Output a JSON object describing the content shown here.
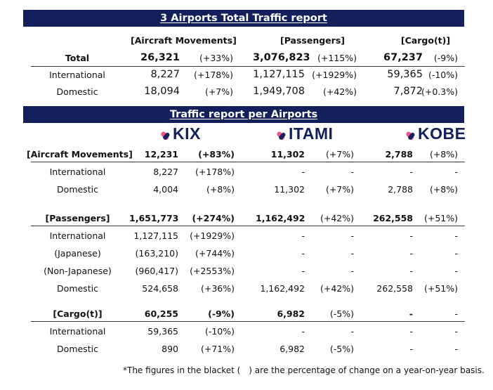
{
  "total_report": {
    "title": "3 Airports Total Traffic report",
    "col_headers": [
      "[Aircraft Movements]",
      "[Passengers]",
      "[Cargo(t)]"
    ],
    "rows": [
      {
        "label": "Total",
        "am": "26,321",
        "am_pct": "(+33%)",
        "pax": "3,076,823",
        "pax_pct": "(+115%)",
        "cargo": "67,237",
        "cargo_pct": "(-9%)"
      },
      {
        "label": "International",
        "am": "8,227",
        "am_pct": "(+178%)",
        "pax": "1,127,115",
        "pax_pct": "(+1929%)",
        "cargo": "59,365",
        "cargo_pct": "(-10%)"
      },
      {
        "label": "Domestic",
        "am": "18,094",
        "am_pct": "(+7%)",
        "pax": "1,949,708",
        "pax_pct": "(+42%)",
        "cargo": "7,872",
        "cargo_pct": "(+0.3%)"
      }
    ]
  },
  "per_airport": {
    "title": "Traffic report per Airports",
    "logos": {
      "kix": "KIX",
      "itami": "ITAMI",
      "kobe": "KOBE"
    },
    "logo_colors": [
      "#e8578f",
      "#14205c"
    ],
    "sections": [
      {
        "rows": [
          {
            "label": "[Aircraft Movements]",
            "kix": "12,231",
            "kix_pct": "(+83%)",
            "itami": "11,302",
            "itami_pct": "(+7%)",
            "kobe": "2,788",
            "kobe_pct": "(+8%)"
          },
          {
            "label": "International",
            "kix": "8,227",
            "kix_pct": "(+178%)",
            "itami": "-",
            "itami_pct": "-",
            "kobe": "-",
            "kobe_pct": "-"
          },
          {
            "label": "Domestic",
            "kix": "4,004",
            "kix_pct": "(+8%)",
            "itami": "11,302",
            "itami_pct": "(+7%)",
            "kobe": "2,788",
            "kobe_pct": "(+8%)"
          }
        ]
      },
      {
        "rows": [
          {
            "label": "[Passengers]",
            "kix": "1,651,773",
            "kix_pct": "(+274%)",
            "itami": "1,162,492",
            "itami_pct": "(+42%)",
            "kobe": "262,558",
            "kobe_pct": "(+51%)"
          },
          {
            "label": "International",
            "kix": "1,127,115",
            "kix_pct": "(+1929%)",
            "itami": "-",
            "itami_pct": "-",
            "kobe": "-",
            "kobe_pct": "-"
          },
          {
            "label": "(Japanese)",
            "kix": "(163,210)",
            "kix_pct": "(+744%)",
            "itami": "-",
            "itami_pct": "-",
            "kobe": "-",
            "kobe_pct": "-"
          },
          {
            "label": "(Non-Japanese)",
            "kix": "(960,417)",
            "kix_pct": "(+2553%)",
            "itami": "-",
            "itami_pct": "-",
            "kobe": "-",
            "kobe_pct": "-"
          },
          {
            "label": "Domestic",
            "kix": "524,658",
            "kix_pct": "(+36%)",
            "itami": "1,162,492",
            "itami_pct": "(+42%)",
            "kobe": "262,558",
            "kobe_pct": "(+51%)"
          }
        ]
      },
      {
        "rows": [
          {
            "label": "[Cargo(t)]",
            "kix": "60,255",
            "kix_pct": "(-9%)",
            "itami": "6,982",
            "itami_pct": "(-5%)",
            "kobe": "-",
            "kobe_pct": "-"
          },
          {
            "label": "International",
            "kix": "59,365",
            "kix_pct": "(-10%)",
            "itami": "-",
            "itami_pct": "-",
            "kobe": "-",
            "kobe_pct": "-"
          },
          {
            "label": "Domestic",
            "kix": "890",
            "kix_pct": "(+71%)",
            "itami": "6,982",
            "itami_pct": "(-5%)",
            "kobe": "-",
            "kobe_pct": "-"
          }
        ]
      }
    ]
  },
  "footnote": "*The figures in the blacket (　) are the percentage of change on a year-on-year basis."
}
